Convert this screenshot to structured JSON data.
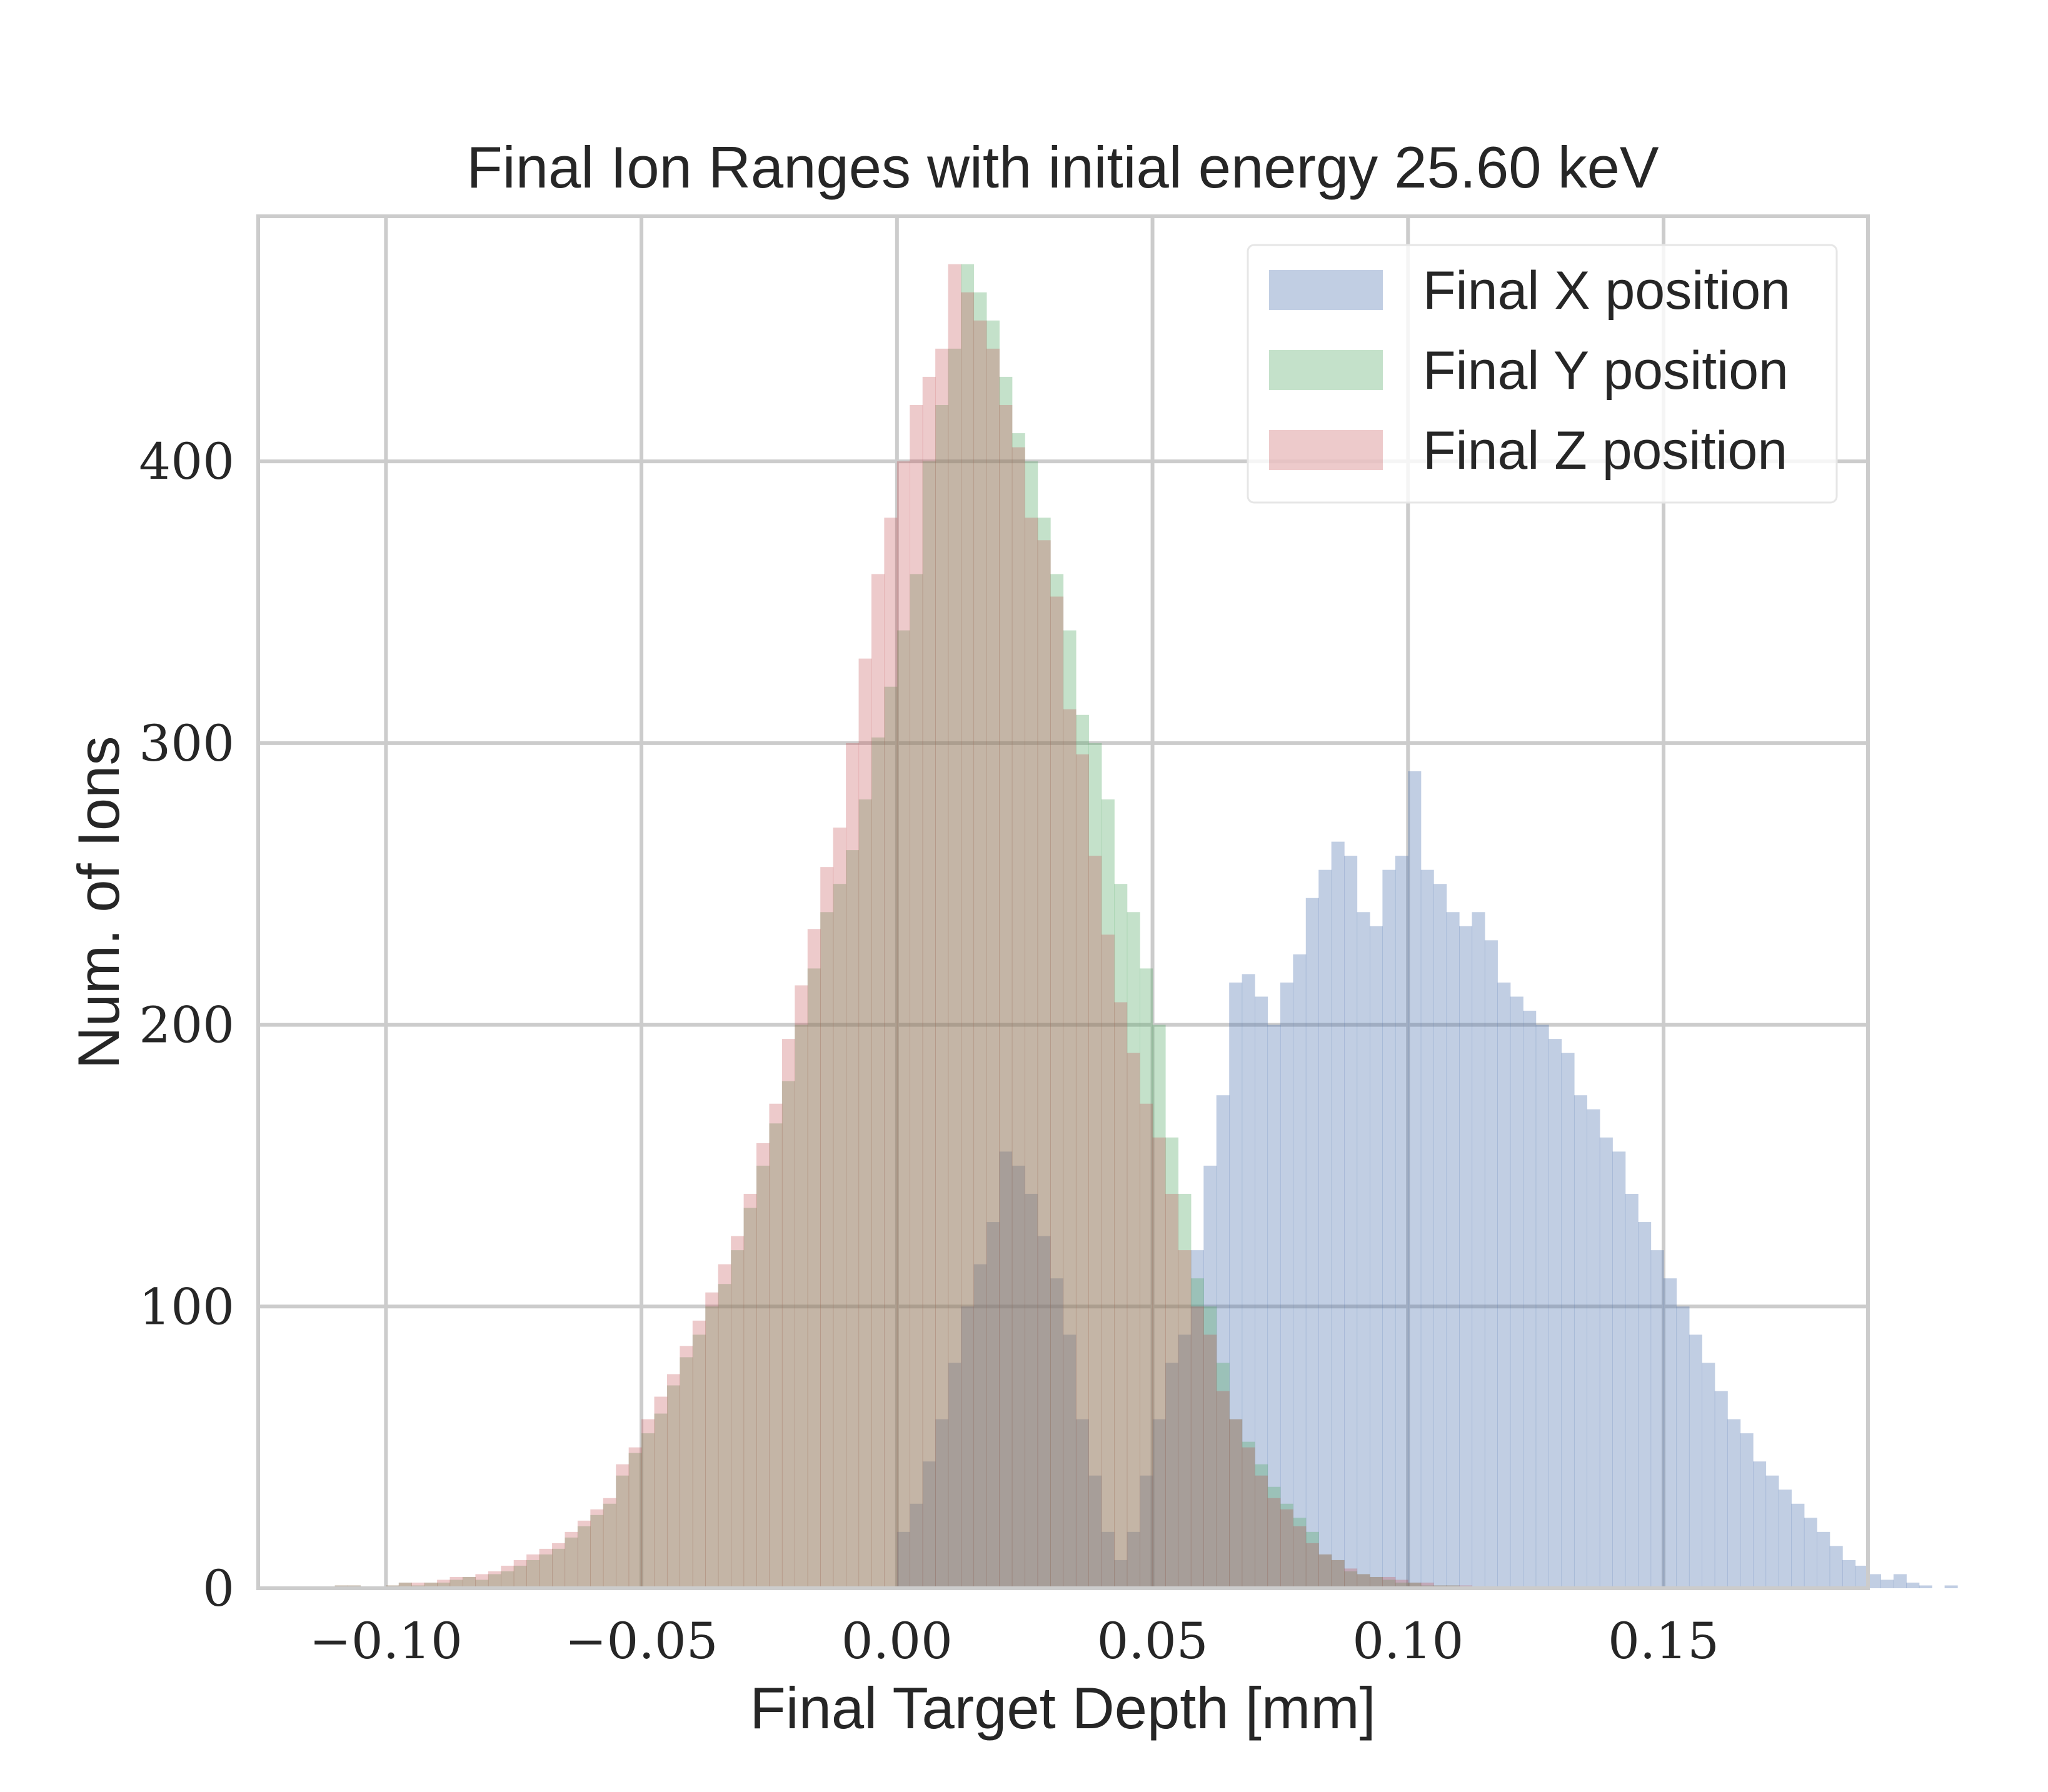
{
  "chart_data": {
    "type": "bar",
    "title": "Final Ion Ranges with initial energy 25.60 keV",
    "xlabel": "Final Target Depth [mm]",
    "ylabel": "Num. of Ions",
    "xlim": [
      -0.125,
      0.19
    ],
    "ylim": [
      0,
      487
    ],
    "x_ticks": [
      -0.1,
      -0.05,
      0.0,
      0.05,
      0.1,
      0.15
    ],
    "x_tick_labels": [
      "−0.10",
      "−0.05",
      "0.00",
      "0.05",
      "0.10",
      "0.15"
    ],
    "y_ticks": [
      0,
      100,
      200,
      300,
      400
    ],
    "y_tick_labels": [
      "0",
      "100",
      "200",
      "300",
      "400"
    ],
    "grid": true,
    "legend_position": "top-right",
    "bin_width": 0.0025,
    "bin_start": -0.11,
    "series": [
      {
        "name": "Final X position",
        "color": "#4c72b0",
        "opacity": 0.35,
        "bin_start": 0.0,
        "values": [
          20,
          30,
          45,
          60,
          80,
          100,
          115,
          130,
          155,
          150,
          140,
          125,
          110,
          90,
          60,
          40,
          20,
          10,
          20,
          40,
          60,
          80,
          90,
          120,
          150,
          175,
          215,
          218,
          210,
          200,
          215,
          225,
          245,
          255,
          265,
          260,
          240,
          235,
          255,
          260,
          290,
          255,
          250,
          240,
          235,
          240,
          230,
          215,
          210,
          205,
          200,
          195,
          190,
          175,
          170,
          160,
          155,
          140,
          130,
          120,
          110,
          100,
          90,
          80,
          70,
          60,
          55,
          45,
          40,
          35,
          30,
          25,
          20,
          15,
          10,
          8,
          5,
          3,
          5,
          2,
          1,
          0,
          1,
          0
        ]
      },
      {
        "name": "Final Y position",
        "color": "#55a868",
        "opacity": 0.35,
        "values": [
          1,
          1,
          0,
          0,
          1,
          2,
          1,
          2,
          2,
          3,
          4,
          3,
          5,
          6,
          8,
          10,
          12,
          14,
          18,
          22,
          26,
          30,
          40,
          48,
          55,
          62,
          72,
          82,
          90,
          100,
          108,
          120,
          135,
          150,
          165,
          180,
          200,
          220,
          240,
          250,
          262,
          280,
          302,
          320,
          340,
          360,
          400,
          420,
          440,
          470,
          460,
          450,
          430,
          410,
          400,
          380,
          360,
          340,
          310,
          300,
          280,
          250,
          240,
          220,
          200,
          160,
          140,
          110,
          100,
          80,
          60,
          52,
          44,
          36,
          30,
          25,
          20,
          12,
          10,
          6,
          5,
          4,
          3,
          2,
          2,
          1,
          1,
          1,
          0,
          0
        ]
      },
      {
        "name": "Final Z position",
        "color": "#c44e52",
        "opacity": 0.3,
        "values": [
          1,
          1,
          0,
          0,
          1,
          2,
          2,
          2,
          3,
          4,
          4,
          5,
          6,
          8,
          10,
          12,
          14,
          16,
          20,
          24,
          28,
          32,
          44,
          50,
          60,
          68,
          76,
          86,
          95,
          105,
          115,
          125,
          140,
          158,
          172,
          195,
          214,
          234,
          256,
          270,
          300,
          330,
          360,
          380,
          400,
          420,
          430,
          440,
          470,
          460,
          450,
          440,
          420,
          405,
          380,
          372,
          352,
          312,
          296,
          260,
          232,
          208,
          190,
          172,
          160,
          140,
          120,
          100,
          90,
          70,
          60,
          50,
          40,
          32,
          28,
          22,
          16,
          12,
          10,
          7,
          5,
          4,
          4,
          3,
          2,
          2,
          1,
          1,
          1,
          0
        ]
      }
    ]
  }
}
